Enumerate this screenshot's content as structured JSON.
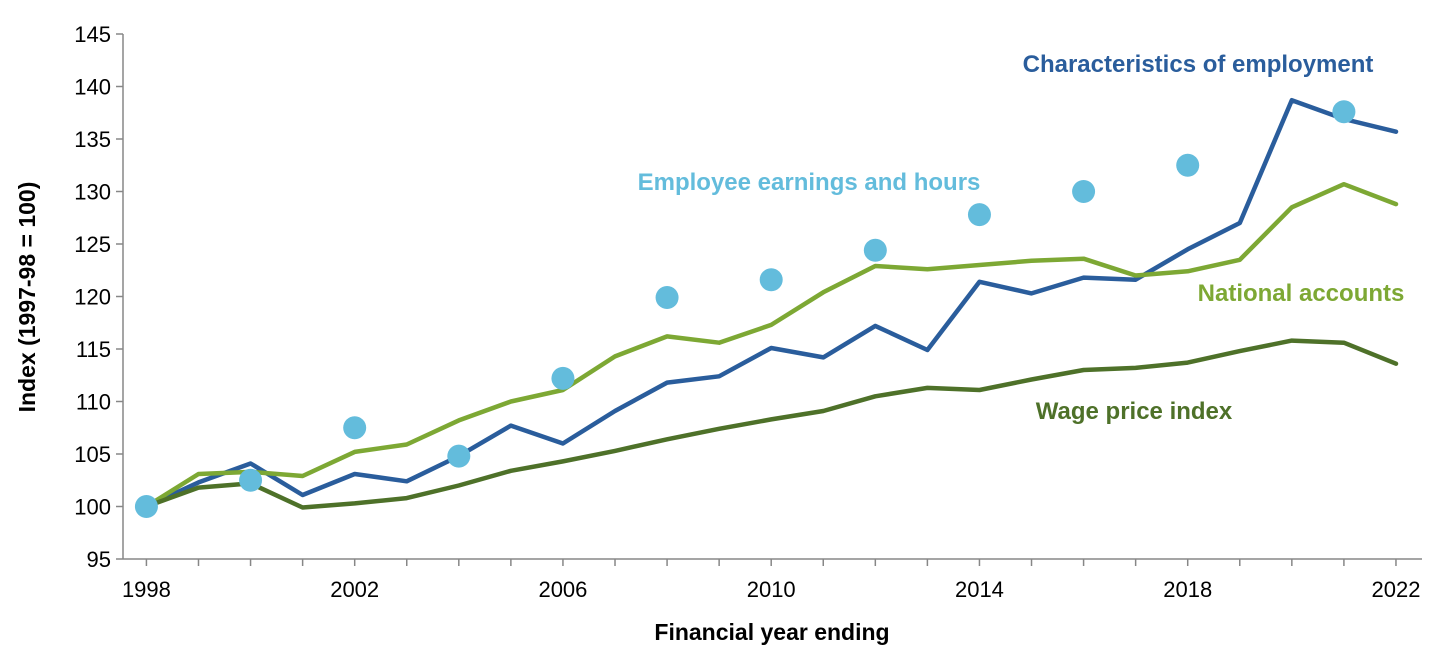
{
  "chart_data": {
    "type": "line",
    "title": "",
    "xlabel": "Financial year ending",
    "ylabel": "Index (1997-98 = 100)",
    "ylim": [
      95,
      145
    ],
    "yticks": [
      95,
      100,
      105,
      110,
      115,
      120,
      125,
      130,
      135,
      140,
      145
    ],
    "xlim": [
      1998,
      2022
    ],
    "xticks": [
      1998,
      2002,
      2006,
      2010,
      2014,
      2018,
      2022
    ],
    "grid": false,
    "legend": "inline-labels",
    "series": [
      {
        "name": "Characteristics of employment",
        "kind": "line",
        "color": "#2A5D9C",
        "x": [
          1998,
          1999,
          2000,
          2001,
          2002,
          2003,
          2004,
          2005,
          2006,
          2007,
          2008,
          2009,
          2010,
          2011,
          2012,
          2013,
          2014,
          2015,
          2016,
          2017,
          2018,
          2019,
          2020,
          2021,
          2022
        ],
        "values": [
          100,
          102.3,
          104.1,
          101.1,
          103.1,
          102.4,
          104.8,
          107.7,
          106.0,
          109.1,
          111.8,
          112.4,
          115.1,
          114.2,
          117.2,
          114.9,
          121.4,
          120.3,
          121.8,
          121.6,
          124.5,
          127.0,
          138.7,
          136.9,
          135.7
        ]
      },
      {
        "name": "National accounts",
        "kind": "line",
        "color": "#7DA834",
        "x": [
          1998,
          1999,
          2000,
          2001,
          2002,
          2003,
          2004,
          2005,
          2006,
          2007,
          2008,
          2009,
          2010,
          2011,
          2012,
          2013,
          2014,
          2015,
          2016,
          2017,
          2018,
          2019,
          2020,
          2021,
          2022
        ],
        "values": [
          100,
          103.1,
          103.3,
          102.9,
          105.2,
          105.9,
          108.2,
          110.0,
          111.1,
          114.3,
          116.2,
          115.6,
          117.3,
          120.4,
          122.9,
          122.6,
          123.0,
          123.4,
          123.6,
          122.0,
          122.4,
          123.5,
          128.5,
          130.7,
          128.8
        ]
      },
      {
        "name": "Wage price index",
        "kind": "line",
        "color": "#4E7129",
        "x": [
          1998,
          1999,
          2000,
          2001,
          2002,
          2003,
          2004,
          2005,
          2006,
          2007,
          2008,
          2009,
          2010,
          2011,
          2012,
          2013,
          2014,
          2015,
          2016,
          2017,
          2018,
          2019,
          2020,
          2021,
          2022
        ],
        "values": [
          100,
          101.8,
          102.2,
          99.9,
          100.3,
          100.8,
          102.0,
          103.4,
          104.3,
          105.3,
          106.4,
          107.4,
          108.3,
          109.1,
          110.5,
          111.3,
          111.1,
          112.1,
          113.0,
          113.2,
          113.7,
          114.8,
          115.8,
          115.6,
          113.6
        ]
      },
      {
        "name": "Employee earnings and hours",
        "kind": "scatter",
        "color": "#63BCDC",
        "x": [
          1998,
          2000,
          2002,
          2004,
          2006,
          2008,
          2010,
          2012,
          2014,
          2016,
          2018,
          2021
        ],
        "values": [
          100,
          102.5,
          107.5,
          104.8,
          112.2,
          119.9,
          121.6,
          124.4,
          127.8,
          130.0,
          132.5,
          137.6
        ]
      }
    ]
  }
}
